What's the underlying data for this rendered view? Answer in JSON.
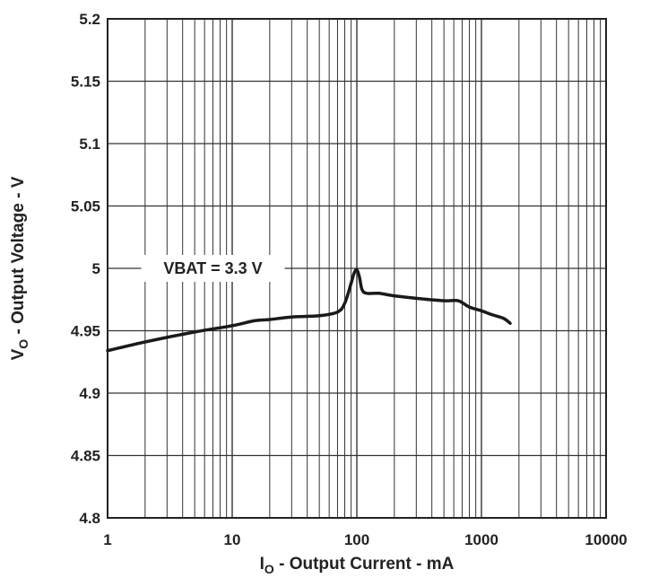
{
  "chart_data": {
    "type": "line",
    "title": "",
    "xlabel": {
      "main": "I",
      "sub": "O",
      "rest": " - Output Current - mA"
    },
    "ylabel": {
      "main": "V",
      "sub": "O",
      "rest": " - Output Voltage - V"
    },
    "xscale": "log",
    "xlim": [
      1,
      10000
    ],
    "ylim": [
      4.8,
      5.2
    ],
    "grid": true,
    "x_ticks": [
      1,
      10,
      100,
      1000,
      10000
    ],
    "x_tick_labels": [
      "1",
      "10",
      "100",
      "1000",
      "10000"
    ],
    "y_ticks": [
      4.8,
      4.85,
      4.9,
      4.95,
      5.0,
      5.05,
      5.1,
      5.15,
      5.2
    ],
    "y_tick_labels": [
      "4.8",
      "4.85",
      "4.9",
      "4.95",
      "5",
      "5.05",
      "5.1",
      "5.15",
      "5.2"
    ],
    "series": [
      {
        "x": [
          1,
          2,
          5,
          10,
          15,
          20,
          30,
          50,
          70,
          80,
          90,
          95,
          100,
          105,
          110,
          120,
          150,
          200,
          300,
          500,
          650,
          800,
          1000,
          1200,
          1500,
          1700
        ],
        "y": [
          4.934,
          4.941,
          4.949,
          4.954,
          4.958,
          4.959,
          4.961,
          4.962,
          4.965,
          4.972,
          4.988,
          4.996,
          4.999,
          4.993,
          4.983,
          4.98,
          4.98,
          4.978,
          4.976,
          4.974,
          4.974,
          4.969,
          4.966,
          4.963,
          4.96,
          4.956
        ]
      }
    ],
    "annotations": [
      {
        "text": "VBAT = 3.3 V",
        "x": 8,
        "y": 5.0
      }
    ]
  },
  "colors": {
    "line": "#1a1a1a",
    "grid": "#333333",
    "text": "#222222",
    "background": "#ffffff"
  }
}
